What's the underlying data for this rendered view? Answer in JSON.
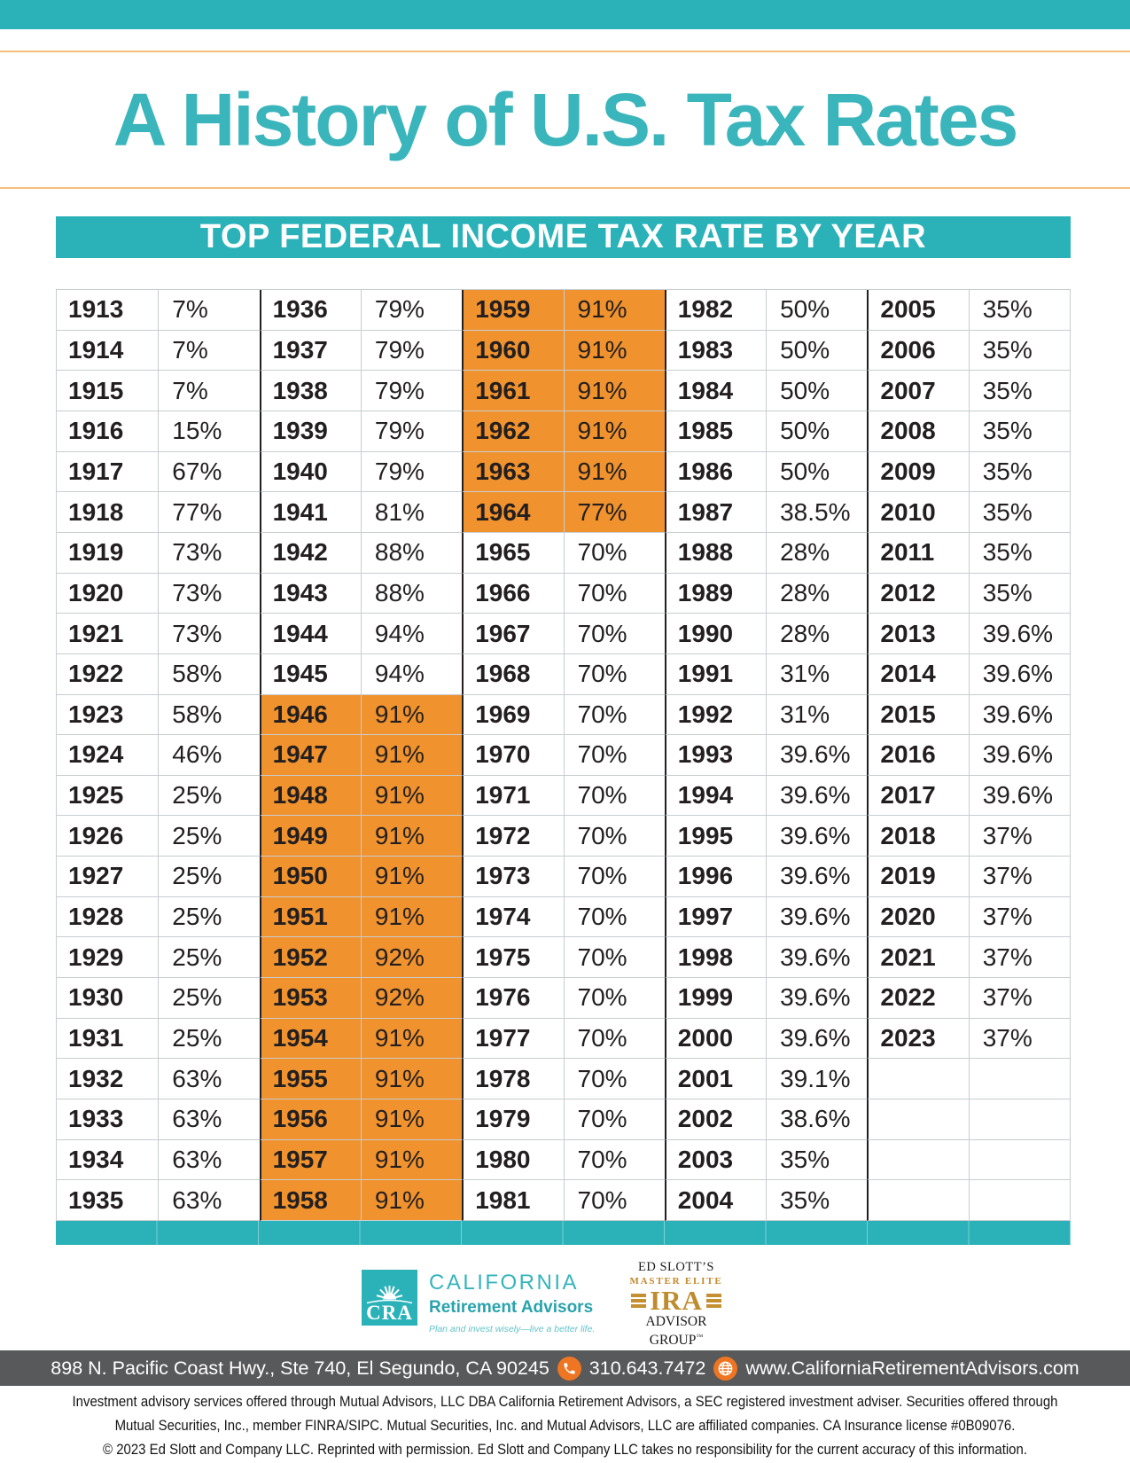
{
  "header": {
    "title": "A History of U.S. Tax Rates",
    "banner": "TOP FEDERAL INCOME TAX RATE BY YEAR"
  },
  "colors": {
    "teal": "#2BB2B9",
    "title_teal": "#3AB5BC",
    "highlight_orange": "#F0922D",
    "rule_orange": "#F3C07C",
    "footer_gray": "#58595B",
    "icon_orange": "#EE7522",
    "text_dark": "#231F20",
    "gold": "#C49031"
  },
  "table": {
    "columns": 5,
    "rows_per_column": 23,
    "highlight": {
      "from_year": 1946,
      "to_year": 1964
    },
    "entries": [
      [
        1913,
        "7%"
      ],
      [
        1914,
        "7%"
      ],
      [
        1915,
        "7%"
      ],
      [
        1916,
        "15%"
      ],
      [
        1917,
        "67%"
      ],
      [
        1918,
        "77%"
      ],
      [
        1919,
        "73%"
      ],
      [
        1920,
        "73%"
      ],
      [
        1921,
        "73%"
      ],
      [
        1922,
        "58%"
      ],
      [
        1923,
        "58%"
      ],
      [
        1924,
        "46%"
      ],
      [
        1925,
        "25%"
      ],
      [
        1926,
        "25%"
      ],
      [
        1927,
        "25%"
      ],
      [
        1928,
        "25%"
      ],
      [
        1929,
        "25%"
      ],
      [
        1930,
        "25%"
      ],
      [
        1931,
        "25%"
      ],
      [
        1932,
        "63%"
      ],
      [
        1933,
        "63%"
      ],
      [
        1934,
        "63%"
      ],
      [
        1935,
        "63%"
      ],
      [
        1936,
        "79%"
      ],
      [
        1937,
        "79%"
      ],
      [
        1938,
        "79%"
      ],
      [
        1939,
        "79%"
      ],
      [
        1940,
        "79%"
      ],
      [
        1941,
        "81%"
      ],
      [
        1942,
        "88%"
      ],
      [
        1943,
        "88%"
      ],
      [
        1944,
        "94%"
      ],
      [
        1945,
        "94%"
      ],
      [
        1946,
        "91%"
      ],
      [
        1947,
        "91%"
      ],
      [
        1948,
        "91%"
      ],
      [
        1949,
        "91%"
      ],
      [
        1950,
        "91%"
      ],
      [
        1951,
        "91%"
      ],
      [
        1952,
        "92%"
      ],
      [
        1953,
        "92%"
      ],
      [
        1954,
        "91%"
      ],
      [
        1955,
        "91%"
      ],
      [
        1956,
        "91%"
      ],
      [
        1957,
        "91%"
      ],
      [
        1958,
        "91%"
      ],
      [
        1959,
        "91%"
      ],
      [
        1960,
        "91%"
      ],
      [
        1961,
        "91%"
      ],
      [
        1962,
        "91%"
      ],
      [
        1963,
        "91%"
      ],
      [
        1964,
        "77%"
      ],
      [
        1965,
        "70%"
      ],
      [
        1966,
        "70%"
      ],
      [
        1967,
        "70%"
      ],
      [
        1968,
        "70%"
      ],
      [
        1969,
        "70%"
      ],
      [
        1970,
        "70%"
      ],
      [
        1971,
        "70%"
      ],
      [
        1972,
        "70%"
      ],
      [
        1973,
        "70%"
      ],
      [
        1974,
        "70%"
      ],
      [
        1975,
        "70%"
      ],
      [
        1976,
        "70%"
      ],
      [
        1977,
        "70%"
      ],
      [
        1978,
        "70%"
      ],
      [
        1979,
        "70%"
      ],
      [
        1980,
        "70%"
      ],
      [
        1981,
        "70%"
      ],
      [
        1982,
        "50%"
      ],
      [
        1983,
        "50%"
      ],
      [
        1984,
        "50%"
      ],
      [
        1985,
        "50%"
      ],
      [
        1986,
        "50%"
      ],
      [
        1987,
        "38.5%"
      ],
      [
        1988,
        "28%"
      ],
      [
        1989,
        "28%"
      ],
      [
        1990,
        "28%"
      ],
      [
        1991,
        "31%"
      ],
      [
        1992,
        "31%"
      ],
      [
        1993,
        "39.6%"
      ],
      [
        1994,
        "39.6%"
      ],
      [
        1995,
        "39.6%"
      ],
      [
        1996,
        "39.6%"
      ],
      [
        1997,
        "39.6%"
      ],
      [
        1998,
        "39.6%"
      ],
      [
        1999,
        "39.6%"
      ],
      [
        2000,
        "39.6%"
      ],
      [
        2001,
        "39.1%"
      ],
      [
        2002,
        "38.6%"
      ],
      [
        2003,
        "35%"
      ],
      [
        2004,
        "35%"
      ],
      [
        2005,
        "35%"
      ],
      [
        2006,
        "35%"
      ],
      [
        2007,
        "35%"
      ],
      [
        2008,
        "35%"
      ],
      [
        2009,
        "35%"
      ],
      [
        2010,
        "35%"
      ],
      [
        2011,
        "35%"
      ],
      [
        2012,
        "35%"
      ],
      [
        2013,
        "39.6%"
      ],
      [
        2014,
        "39.6%"
      ],
      [
        2015,
        "39.6%"
      ],
      [
        2016,
        "39.6%"
      ],
      [
        2017,
        "39.6%"
      ],
      [
        2018,
        "37%"
      ],
      [
        2019,
        "37%"
      ],
      [
        2020,
        "37%"
      ],
      [
        2021,
        "37%"
      ],
      [
        2022,
        "37%"
      ],
      [
        2023,
        "37%"
      ]
    ]
  },
  "logos": {
    "cra": {
      "monogram": "CRA",
      "name_line1": "CALIFORNIA",
      "name_line2": "Retirement Advisors",
      "tagline": "Plan and invest wisely—live a better life."
    },
    "ed_slott": {
      "line1": "ED SLOTT’S",
      "line2": "MASTER ELITE",
      "line3": "IRA",
      "line4": "ADVISOR",
      "line5": "GROUP",
      "tm": "™"
    }
  },
  "footer": {
    "address": "898 N. Pacific Coast Hwy., Ste 740, El Segundo, CA 90245",
    "phone": "310.643.7472",
    "website": "www.CaliforniaRetirementAdvisors.com"
  },
  "disclaimer": [
    "Investment advisory services offered through Mutual Advisors, LLC DBA California Retirement Advisors, a SEC registered investment adviser. Securities offered through",
    "Mutual Securities, Inc., member FINRA/SIPC. Mutual Securities, Inc. and Mutual Advisors, LLC are affiliated companies. CA Insurance license #0B09076.",
    "© 2023 Ed Slott and Company LLC.  Reprinted with permission.  Ed Slott and Company LLC takes no responsibility for the current accuracy of this information."
  ]
}
